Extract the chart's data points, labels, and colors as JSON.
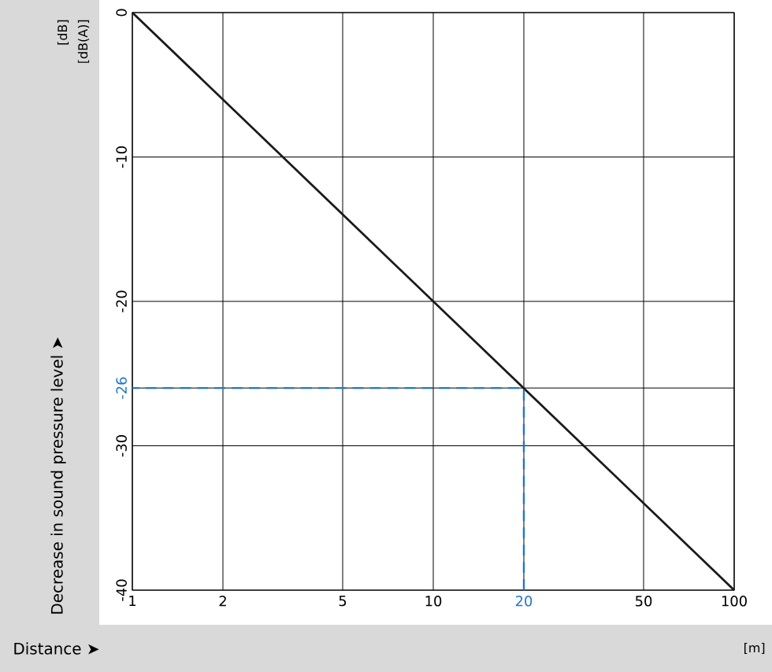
{
  "chart_data": {
    "type": "line",
    "xlabel": "Distance ➤",
    "ylabel": "Decrease in sound pressure level ➤",
    "annotations": [
      "[dB]",
      "[dB(A)]",
      "[m]"
    ],
    "log": "x",
    "grid": true,
    "xlim": [
      1,
      100
    ],
    "xticks": [
      1,
      2,
      5,
      10,
      20,
      50,
      100
    ],
    "ylim": [
      -40,
      0
    ],
    "yticks": [
      0,
      -10,
      -20,
      {
        "value": -26,
        "label": "-26"
      },
      -30,
      -40
    ],
    "series": [
      {
        "color": "#1a1a1a",
        "line_style": "solid",
        "x": [
          1,
          100
        ],
        "values": [
          0,
          -40
        ]
      },
      {
        "color": "#1f78c8",
        "line_style": "dashed",
        "x": [
          20,
          20,
          1
        ],
        "values": [
          -40,
          -26,
          -26
        ]
      }
    ]
  }
}
